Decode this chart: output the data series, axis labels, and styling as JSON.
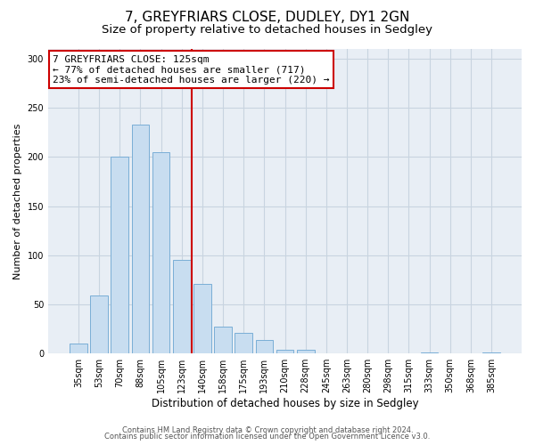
{
  "title": "7, GREYFRIARS CLOSE, DUDLEY, DY1 2GN",
  "subtitle": "Size of property relative to detached houses in Sedgley",
  "xlabel": "Distribution of detached houses by size in Sedgley",
  "ylabel": "Number of detached properties",
  "bar_labels": [
    "35sqm",
    "53sqm",
    "70sqm",
    "88sqm",
    "105sqm",
    "123sqm",
    "140sqm",
    "158sqm",
    "175sqm",
    "193sqm",
    "210sqm",
    "228sqm",
    "245sqm",
    "263sqm",
    "280sqm",
    "298sqm",
    "315sqm",
    "333sqm",
    "350sqm",
    "368sqm",
    "385sqm"
  ],
  "bar_values": [
    10,
    59,
    200,
    233,
    205,
    95,
    71,
    27,
    21,
    14,
    4,
    4,
    0,
    0,
    0,
    0,
    0,
    1,
    0,
    0,
    1
  ],
  "bar_color": "#c8ddf0",
  "bar_edge_color": "#7aaed6",
  "vline_index": 5,
  "vline_color": "#cc0000",
  "ylim": [
    0,
    310
  ],
  "yticks": [
    0,
    50,
    100,
    150,
    200,
    250,
    300
  ],
  "annotation_title": "7 GREYFRIARS CLOSE: 125sqm",
  "annotation_line1": "← 77% of detached houses are smaller (717)",
  "annotation_line2": "23% of semi-detached houses are larger (220) →",
  "annotation_box_color": "#ffffff",
  "annotation_box_edge": "#cc0000",
  "footer1": "Contains HM Land Registry data © Crown copyright and database right 2024.",
  "footer2": "Contains public sector information licensed under the Open Government Licence v3.0.",
  "plot_bg_color": "#e8eef5",
  "fig_bg_color": "#ffffff",
  "grid_color": "#c8d4e0",
  "title_fontsize": 11,
  "subtitle_fontsize": 9.5,
  "ylabel_fontsize": 8,
  "xlabel_fontsize": 8.5,
  "tick_fontsize": 7,
  "annotation_fontsize": 8
}
